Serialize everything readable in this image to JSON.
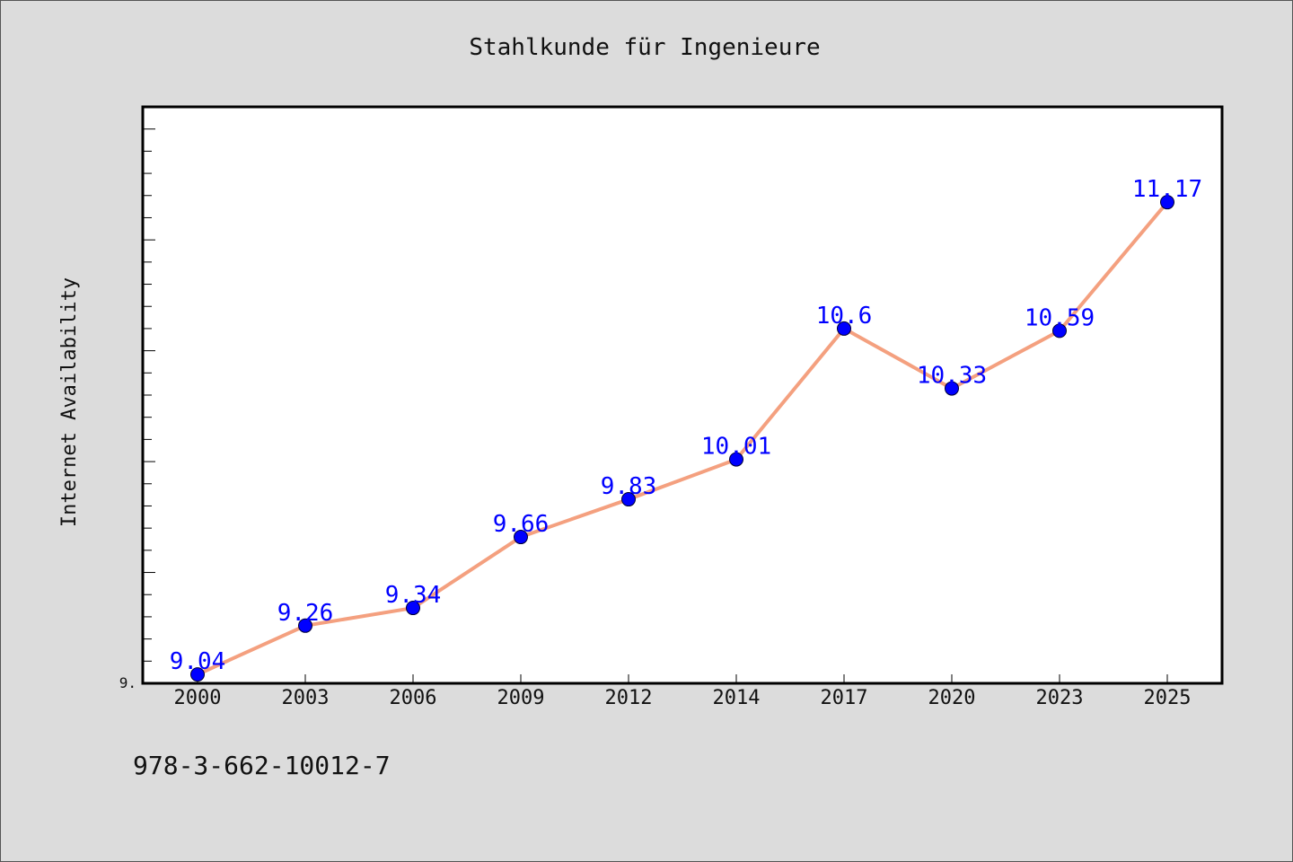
{
  "chart_data": {
    "type": "line",
    "title": "Stahlkunde für Ingenieure",
    "xlabel": "",
    "ylabel": "Internet Availability",
    "categories": [
      "2000",
      "2003",
      "2006",
      "2009",
      "2012",
      "2014",
      "2017",
      "2020",
      "2023",
      "2025"
    ],
    "series": [
      {
        "values": [
          9.04,
          9.26,
          9.34,
          9.66,
          9.83,
          10.01,
          10.6,
          10.33,
          10.59,
          11.17
        ],
        "labels": [
          "9.04",
          "9.26",
          "9.34",
          "9.66",
          "9.83",
          "10.01",
          "10.6",
          "10.33",
          "10.59",
          "11.17"
        ]
      }
    ],
    "ylim": [
      9.0,
      11.6
    ],
    "y_tick_labels": [
      "9."
    ],
    "grid": false,
    "legend": "none",
    "colors": {
      "line": "#f4a07f",
      "marker": "#0000ff",
      "label": "#0000ff",
      "plot_background": "#ffffff",
      "figure_background": "#dcdcdc"
    }
  },
  "footer_text": "978-3-662-10012-7"
}
